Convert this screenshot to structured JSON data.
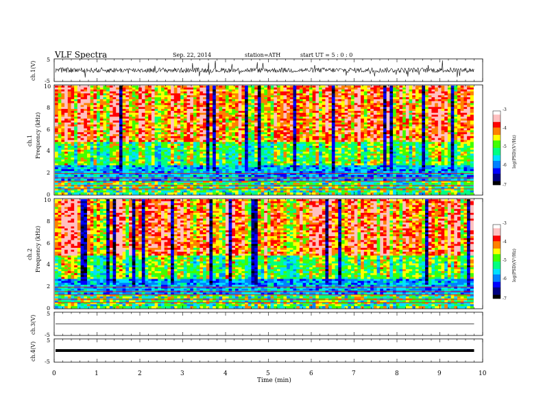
{
  "header": {
    "title": "VLF  Spectra",
    "date": "Sep. 22, 2014",
    "station": "station=ATH",
    "start": "start  UT  =   5  : 0  : 0"
  },
  "colors": {
    "scale": [
      "#000000",
      "#000080",
      "#0000ff",
      "#0080ff",
      "#00e0ff",
      "#00ff80",
      "#40ff00",
      "#ffff00",
      "#ff8000",
      "#ff0000",
      "#ffc0c0",
      "#ffffff"
    ],
    "trace": "#000000"
  },
  "chart_data": [
    {
      "type": "line",
      "panel": "ch1-waveform",
      "ylabel": "ch.1(V)",
      "yticks": [
        "5",
        "-5"
      ],
      "ylim": [
        -5,
        5
      ],
      "description_level": 0.0,
      "xlim": [
        0,
        10
      ]
    },
    {
      "type": "heatmap",
      "panel": "ch1-spectrogram",
      "ylabel_top": "ch.1",
      "ylabel": "Frequency  (kHz)",
      "yticks": [
        "0",
        "2",
        "4",
        "6",
        "8",
        "10"
      ],
      "ylim": [
        0,
        10
      ],
      "xlim": [
        0,
        9.8
      ],
      "colorbar": {
        "label": "log(PSD)(V²/Hz)",
        "ticks": [
          "-3",
          "-4",
          "-5",
          "-6",
          "-7"
        ],
        "range": [
          -7,
          -3
        ]
      }
    },
    {
      "type": "heatmap",
      "panel": "ch2-spectrogram",
      "ylabel_top": "ch.2",
      "ylabel": "Frequency  (kHz)",
      "yticks": [
        "0",
        "2",
        "4",
        "6",
        "8",
        "10"
      ],
      "ylim": [
        0,
        10
      ],
      "xlim": [
        0,
        9.8
      ],
      "colorbar": {
        "label": "log(PSD)(V²/Hz)",
        "ticks": [
          "-3",
          "-4",
          "-5",
          "-6",
          "-7"
        ],
        "range": [
          -7,
          -3
        ]
      }
    },
    {
      "type": "line",
      "panel": "ch3-waveform",
      "ylabel": "ch.3(V)",
      "yticks": [
        "5",
        "-5"
      ],
      "ylim": [
        -5,
        5
      ],
      "level": 0.0,
      "xlim": [
        0,
        10
      ]
    },
    {
      "type": "line",
      "panel": "ch4-waveform",
      "ylabel": "ch.4(V)",
      "yticks": [
        "5",
        "-5"
      ],
      "ylim": [
        -5,
        5
      ],
      "level": 0.0,
      "xlim": [
        0,
        10
      ]
    }
  ],
  "xaxis": {
    "label": "Time  (min)",
    "ticks": [
      "0",
      "1",
      "2",
      "3",
      "4",
      "5",
      "6",
      "7",
      "8",
      "9",
      "10"
    ],
    "range": [
      0,
      10
    ]
  }
}
